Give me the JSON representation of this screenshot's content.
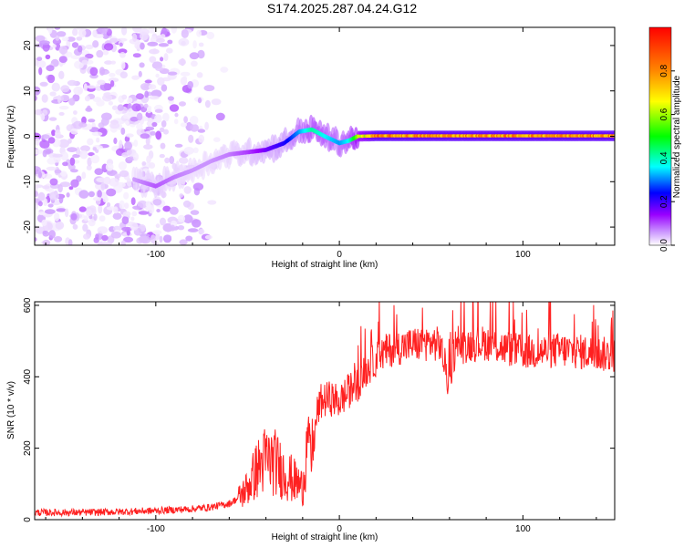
{
  "title": "S174.2025.287.04.24.G12",
  "chart_data": [
    {
      "type": "heatmap",
      "name": "spectrogram",
      "xlabel": "Height of straight line (km)",
      "ylabel": "Frequency (Hz)",
      "xlim": [
        -166,
        150
      ],
      "ylim": [
        -24,
        24
      ],
      "xticks": [
        -100,
        0,
        100
      ],
      "xtick_labels": [
        "-100",
        "0",
        "100"
      ],
      "yticks": [
        -20,
        -10,
        0,
        10,
        20
      ],
      "ytick_labels": [
        "-20",
        "-10",
        "0",
        "10",
        "20"
      ],
      "ridge": {
        "description": "signal ridge frequency vs height",
        "x": [
          -112,
          -100,
          -90,
          -80,
          -70,
          -60,
          -50,
          -40,
          -30,
          -22,
          -15,
          -8,
          0,
          5,
          10,
          20,
          150
        ],
        "y": [
          -9.5,
          -11,
          -9,
          -7.5,
          -5.5,
          -4,
          -3.5,
          -3,
          -1.5,
          1,
          1.5,
          0,
          -1.5,
          -1,
          0,
          0.1,
          0.1
        ],
        "amplitude": [
          0.12,
          0.18,
          0.15,
          0.13,
          0.13,
          0.15,
          0.2,
          0.28,
          0.35,
          0.45,
          0.55,
          0.5,
          0.45,
          0.5,
          0.7,
          0.85,
          0.85
        ]
      },
      "noise_region": {
        "x_range": [
          -166,
          -60
        ],
        "freq_range": [
          -24,
          24
        ],
        "amplitude": "low (0.0 - 0.2)"
      },
      "colorbar": {
        "label": "Normalized spectral amplitude",
        "range": [
          0.0,
          1.0
        ],
        "ticks": [
          0.0,
          0.2,
          0.4,
          0.6,
          0.8
        ],
        "tick_labels": [
          "0.0",
          "0.2",
          "0.4",
          "0.6",
          "0.8"
        ],
        "colors": [
          "#ffffff",
          "#cc99ff",
          "#9900ff",
          "#0000ff",
          "#00ffff",
          "#00ff00",
          "#ffff00",
          "#ff8800",
          "#ff0000"
        ]
      }
    },
    {
      "type": "line",
      "name": "snr",
      "xlabel": "Height of straight line (km)",
      "ylabel": "SNR (10 * v/v)",
      "xlim": [
        -166,
        150
      ],
      "ylim": [
        0,
        610
      ],
      "xticks": [
        -100,
        0,
        100
      ],
      "xtick_labels": [
        "-100",
        "0",
        "100"
      ],
      "yticks": [
        0,
        200,
        400,
        600
      ],
      "ytick_labels": [
        "0",
        "200",
        "400",
        "600"
      ],
      "color": "#ff2020",
      "x": [
        -166,
        -140,
        -120,
        -100,
        -80,
        -70,
        -60,
        -55,
        -50,
        -45,
        -40,
        -35,
        -30,
        -25,
        -20,
        -17,
        -15,
        -12,
        -10,
        -5,
        0,
        5,
        10,
        15,
        20,
        25,
        30,
        40,
        50,
        55,
        58,
        60,
        62,
        65,
        70,
        80,
        90,
        100,
        110,
        120,
        130,
        140,
        150
      ],
      "y": [
        20,
        20,
        22,
        25,
        30,
        35,
        45,
        60,
        90,
        140,
        170,
        160,
        130,
        110,
        90,
        250,
        170,
        300,
        330,
        340,
        330,
        360,
        380,
        420,
        450,
        470,
        480,
        490,
        495,
        490,
        420,
        370,
        460,
        480,
        490,
        495,
        480,
        470,
        470,
        475,
        470,
        465,
        460
      ]
    }
  ]
}
